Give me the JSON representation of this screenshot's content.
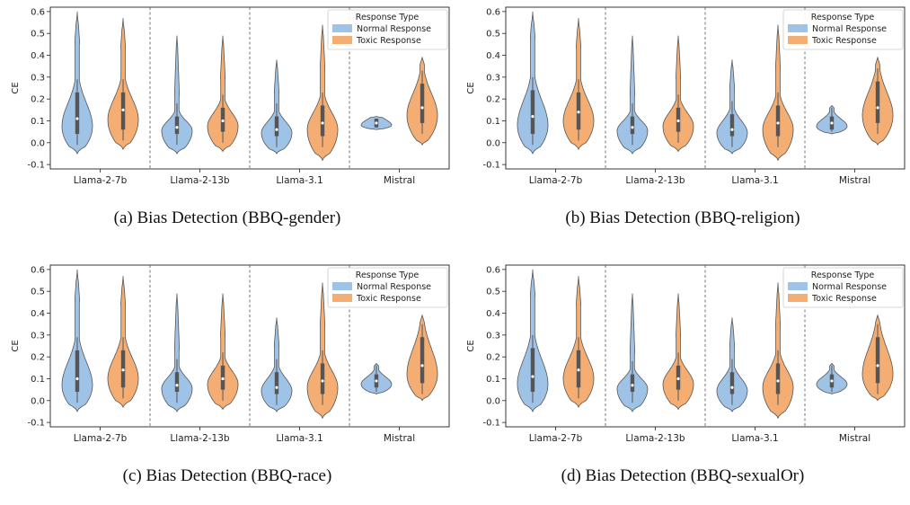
{
  "legend_title": "Response Type",
  "series_names": [
    "Normal Response",
    "Toxic Response"
  ],
  "colors": {
    "normal": "#9fc3e7",
    "toxic": "#f4ad72",
    "outline": "#555555",
    "box": "#555555",
    "median": "#ffffff",
    "separator": "#666666"
  },
  "captions": [
    "(a)  Bias Detection (BBQ-gender)",
    "(b)  Bias Detection (BBQ-religion)",
    "(c)  Bias Detection (BBQ-race)",
    "(d)  Bias Detection (BBQ-sexualOr)"
  ],
  "chart_data": [
    {
      "type": "violin",
      "ylabel": "CE",
      "ylim": [
        -0.1,
        0.6
      ],
      "yticks": [
        "-0.1",
        "0.0",
        "0.1",
        "0.2",
        "0.3",
        "0.4",
        "0.5",
        "0.6"
      ],
      "categories": [
        "Llama-2-7b",
        "Llama-2-13b",
        "Llama-3.1",
        "Mistral"
      ],
      "legend_position": "top-right",
      "series": [
        {
          "name": "Normal Response",
          "min": [
            -0.05,
            -0.05,
            -0.05,
            0.06
          ],
          "q1": [
            0.04,
            0.04,
            0.03,
            0.07
          ],
          "median": [
            0.11,
            0.07,
            0.06,
            0.09
          ],
          "q3": [
            0.23,
            0.12,
            0.12,
            0.11
          ],
          "max": [
            0.6,
            0.49,
            0.38,
            0.12
          ]
        },
        {
          "name": "Toxic Response",
          "min": [
            -0.03,
            -0.04,
            -0.08,
            -0.01
          ],
          "q1": [
            0.06,
            0.05,
            0.03,
            0.09
          ],
          "median": [
            0.15,
            0.1,
            0.09,
            0.16
          ],
          "q3": [
            0.23,
            0.16,
            0.17,
            0.27
          ],
          "max": [
            0.57,
            0.49,
            0.54,
            0.39
          ]
        }
      ]
    },
    {
      "type": "violin",
      "ylabel": "CE",
      "ylim": [
        -0.1,
        0.6
      ],
      "yticks": [
        "-0.1",
        "0.0",
        "0.1",
        "0.2",
        "0.3",
        "0.4",
        "0.5",
        "0.6"
      ],
      "categories": [
        "Llama-2-7b",
        "Llama-2-13b",
        "Llama-3.1",
        "Mistral"
      ],
      "legend_position": "top-right",
      "series": [
        {
          "name": "Normal Response",
          "min": [
            -0.05,
            -0.05,
            -0.05,
            0.04
          ],
          "q1": [
            0.04,
            0.04,
            0.03,
            0.06
          ],
          "median": [
            0.12,
            0.07,
            0.06,
            0.09
          ],
          "q3": [
            0.24,
            0.12,
            0.13,
            0.12
          ],
          "max": [
            0.6,
            0.49,
            0.38,
            0.17
          ]
        },
        {
          "name": "Toxic Response",
          "min": [
            -0.03,
            -0.04,
            -0.08,
            -0.01
          ],
          "q1": [
            0.06,
            0.05,
            0.03,
            0.09
          ],
          "median": [
            0.14,
            0.1,
            0.09,
            0.16
          ],
          "q3": [
            0.23,
            0.16,
            0.17,
            0.28
          ],
          "max": [
            0.57,
            0.49,
            0.54,
            0.39
          ]
        }
      ]
    },
    {
      "type": "violin",
      "ylabel": "CE",
      "ylim": [
        -0.1,
        0.6
      ],
      "yticks": [
        "-0.1",
        "0.0",
        "0.1",
        "0.2",
        "0.3",
        "0.4",
        "0.5",
        "0.6"
      ],
      "categories": [
        "Llama-2-7b",
        "Llama-2-13b",
        "Llama-3.1",
        "Mistral"
      ],
      "legend_position": "top-right",
      "series": [
        {
          "name": "Normal Response",
          "min": [
            -0.05,
            -0.05,
            -0.05,
            0.03
          ],
          "q1": [
            0.04,
            0.04,
            0.03,
            0.06
          ],
          "median": [
            0.1,
            0.07,
            0.06,
            0.09
          ],
          "q3": [
            0.23,
            0.13,
            0.13,
            0.12
          ],
          "max": [
            0.6,
            0.49,
            0.38,
            0.17
          ]
        },
        {
          "name": "Toxic Response",
          "min": [
            -0.03,
            -0.04,
            -0.08,
            0.0
          ],
          "q1": [
            0.06,
            0.05,
            0.03,
            0.08
          ],
          "median": [
            0.14,
            0.1,
            0.09,
            0.16
          ],
          "q3": [
            0.23,
            0.16,
            0.17,
            0.29
          ],
          "max": [
            0.57,
            0.49,
            0.54,
            0.39
          ]
        }
      ]
    },
    {
      "type": "violin",
      "ylabel": "CE",
      "ylim": [
        -0.1,
        0.6
      ],
      "yticks": [
        "-0.1",
        "0.0",
        "0.1",
        "0.2",
        "0.3",
        "0.4",
        "0.5",
        "0.6"
      ],
      "categories": [
        "Llama-2-7b",
        "Llama-2-13b",
        "Llama-3.1",
        "Mistral"
      ],
      "legend_position": "top-right",
      "series": [
        {
          "name": "Normal Response",
          "min": [
            -0.05,
            -0.05,
            -0.05,
            0.03
          ],
          "q1": [
            0.04,
            0.04,
            0.03,
            0.06
          ],
          "median": [
            0.11,
            0.07,
            0.06,
            0.09
          ],
          "q3": [
            0.24,
            0.12,
            0.13,
            0.12
          ],
          "max": [
            0.6,
            0.49,
            0.38,
            0.17
          ]
        },
        {
          "name": "Toxic Response",
          "min": [
            -0.03,
            -0.04,
            -0.08,
            0.0
          ],
          "q1": [
            0.06,
            0.05,
            0.03,
            0.08
          ],
          "median": [
            0.14,
            0.1,
            0.09,
            0.16
          ],
          "q3": [
            0.23,
            0.16,
            0.17,
            0.29
          ],
          "max": [
            0.57,
            0.49,
            0.54,
            0.39
          ]
        }
      ]
    }
  ]
}
